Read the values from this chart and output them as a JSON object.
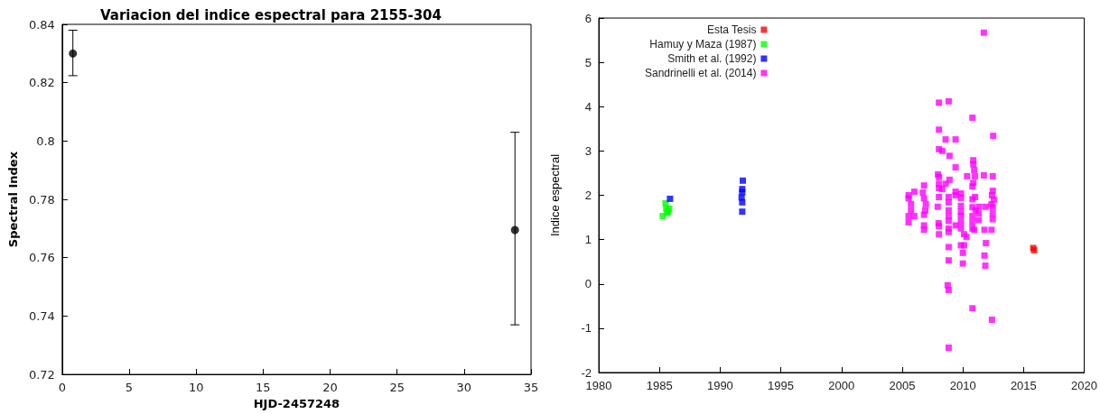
{
  "chart_data": [
    {
      "type": "scatter",
      "title": "Variacion del indice espectral para 2155-304",
      "xlabel": "HJD-2457248",
      "ylabel": "Spectral Index",
      "marker": "circle",
      "grid": false,
      "legend": false,
      "xlim": [
        0,
        35
      ],
      "xticks": [
        0,
        5,
        10,
        15,
        20,
        25,
        30,
        35
      ],
      "ylim": [
        0.72,
        0.84
      ],
      "yticks": [
        0.72,
        0.74,
        0.76,
        0.78,
        0.8,
        0.82,
        0.84
      ],
      "series": [
        {
          "color": "#000000",
          "x": [
            0.8,
            33.8
          ],
          "values": [
            0.83,
            0.7695
          ],
          "errors": [
            [
              0.8224,
              0.838
            ],
            [
              0.737,
              0.803
            ]
          ]
        }
      ]
    },
    {
      "type": "scatter",
      "ylabel": "Indice espectral",
      "marker": "square",
      "grid": false,
      "legend": "top left",
      "xlim": [
        1980,
        2020
      ],
      "xticks": [
        1980,
        1985,
        1990,
        1995,
        2000,
        2005,
        2010,
        2015,
        2020
      ],
      "ylim": [
        -2,
        6
      ],
      "yticks": [
        -2,
        -1,
        0,
        1,
        2,
        3,
        4,
        5,
        6
      ],
      "series": [
        {
          "name": "Esta Tesis",
          "color": "#ff0000",
          "x": [
            2015.8,
            2015.87
          ],
          "values": [
            0.81,
            0.76
          ]
        },
        {
          "name": "Hamuy y Maza (1987)",
          "color": "#00ff00",
          "x": [
            1985.27,
            1985.5,
            1985.56,
            1985.8,
            1985.63,
            1985.7
          ],
          "values": [
            1.53,
            1.82,
            1.7,
            1.7,
            1.6,
            1.63
          ]
        },
        {
          "name": "Smith et al. (1992)",
          "color": "#0000ff",
          "x": [
            1985.87,
            1991.87,
            1991.82,
            1991.77,
            1991.82,
            1991.82,
            1991.82
          ],
          "values": [
            1.92,
            2.33,
            2.07,
            1.95,
            1.84,
            1.63,
            2.14
          ]
        },
        {
          "name": "Sandrinelli et al. (2014)",
          "color": "#ff00ff",
          "x": [
            2011.73,
            2008.03,
            2008.83,
            2010.79,
            2008.03,
            2012.5,
            2008.58,
            2009.4,
            2008.03,
            2008.3,
            2008.9,
            2010.86,
            2010.86,
            2009.4,
            2010.93,
            2010.35,
            2011.0,
            2011.73,
            2012.46,
            2007.95,
            2008.03,
            2008.9,
            2010.86,
            2010.79,
            2008.58,
            2008.03,
            2008.03,
            2008.3,
            2006.8,
            2006.0,
            2005.53,
            2006.7,
            2008.03,
            2009.4,
            2009.84,
            2009.4,
            2009.84,
            2008.83,
            2008.83,
            2010.79,
            2011.0,
            2012.46,
            2012.4,
            2012.55,
            2012.36,
            2012.46,
            2011.88,
            2011.34,
            2007.93,
            2005.53,
            2005.73,
            2005.73,
            2005.53,
            2005.53,
            2006.0,
            2006.8,
            2006.95,
            2006.9,
            2006.8,
            2006.8,
            2006.8,
            2009.84,
            2009.84,
            2009.84,
            2009.84,
            2009.84,
            2010.1,
            2009.84,
            2010.1,
            2010.0,
            2010.0,
            2008.83,
            2008.83,
            2008.83,
            2008.83,
            2008.83,
            2008.0,
            2008.03,
            2008.03,
            2009.4,
            2010.79,
            2010.79,
            2010.79,
            2010.79,
            2010.93,
            2011.05,
            2011.3,
            2011.3,
            2011.78,
            2012.36,
            2011.9,
            2011.78,
            2011.85,
            2010.3,
            2008.83,
            2008.83,
            2008.75,
            2008.83,
            2010.79,
            2012.4,
            2008.83,
            2012.46,
            2012.46
          ],
          "values": [
            5.67,
            4.09,
            4.12,
            3.75,
            3.48,
            3.34,
            3.26,
            3.26,
            3.04,
            3.0,
            2.89,
            2.79,
            2.7,
            2.63,
            2.57,
            2.43,
            2.43,
            2.45,
            2.43,
            2.47,
            2.41,
            2.35,
            2.28,
            2.2,
            2.26,
            2.26,
            2.16,
            2.14,
            2.22,
            2.08,
            2.0,
            2.06,
            1.96,
            2.08,
            2.04,
            2.0,
            1.94,
            1.96,
            1.84,
            1.91,
            1.96,
            2.1,
            2.0,
            1.9,
            1.8,
            1.73,
            1.74,
            1.74,
            1.74,
            1.93,
            1.8,
            1.66,
            1.53,
            1.39,
            1.53,
            1.93,
            1.8,
            1.66,
            1.56,
            1.32,
            1.22,
            1.76,
            1.63,
            1.53,
            1.39,
            1.25,
            1.12,
            0.87,
            0.87,
            0.7,
            0.46,
            1.66,
            1.53,
            1.42,
            1.25,
            1.17,
            1.37,
            1.3,
            1.12,
            1.32,
            1.73,
            1.53,
            1.39,
            1.25,
            1.22,
            1.66,
            1.59,
            1.44,
            1.22,
            1.22,
            0.92,
            0.64,
            0.41,
            1.06,
            0.83,
            0.53,
            -0.03,
            -0.14,
            -0.55,
            -0.81,
            -1.44,
            1.59,
            1.46
          ]
        }
      ]
    }
  ]
}
